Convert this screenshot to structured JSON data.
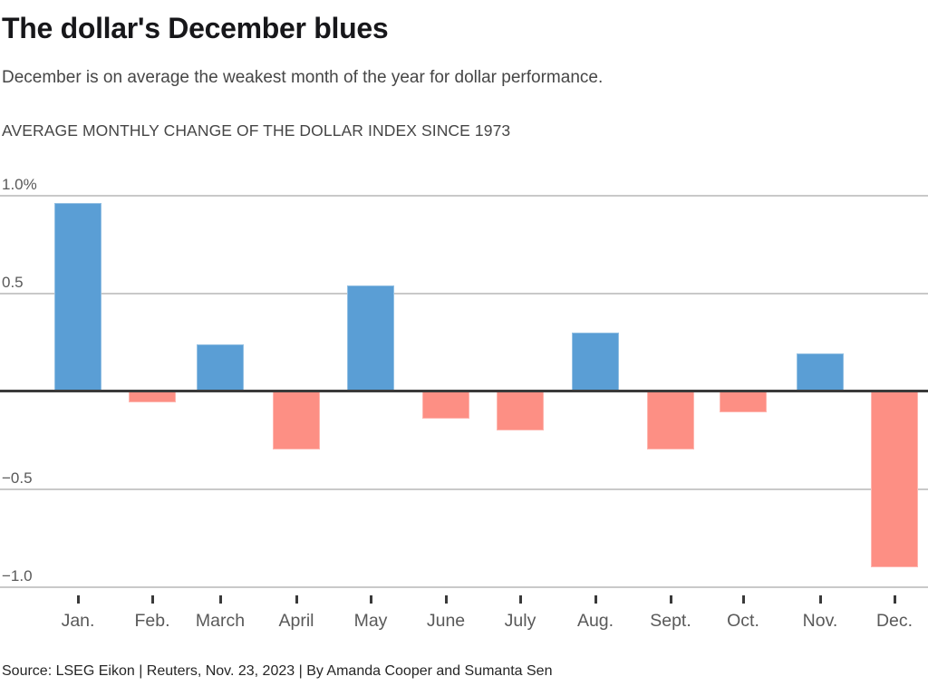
{
  "header": {
    "title": "The dollar's December blues",
    "subtitle": "December is on average the weakest month of the year for dollar performance.",
    "kicker": "AVERAGE MONTHLY CHANGE OF THE DOLLAR INDEX SINCE 1973"
  },
  "chart_data": {
    "type": "bar",
    "title": "AVERAGE MONTHLY CHANGE OF THE DOLLAR INDEX SINCE 1973",
    "categories": [
      "Jan.",
      "Feb.",
      "March",
      "April",
      "May",
      "June",
      "July",
      "Aug.",
      "Sept.",
      "Oct.",
      "Nov.",
      "Dec."
    ],
    "values": [
      0.96,
      -0.06,
      0.24,
      -0.3,
      0.54,
      -0.14,
      -0.2,
      0.3,
      -0.3,
      -0.11,
      0.19,
      -0.9
    ],
    "unit": "%",
    "xlabel": "",
    "ylabel": "",
    "ylim": [
      -1.15,
      1.1
    ],
    "y_ticks": [
      {
        "value": 1.0,
        "label": "1.0%"
      },
      {
        "value": 0.5,
        "label": "0.5"
      },
      {
        "value": 0,
        "label": ""
      },
      {
        "value": -0.5,
        "label": "−0.5"
      },
      {
        "value": -1.0,
        "label": "−1.0"
      }
    ],
    "grid": "horizontal",
    "legend": "none",
    "colors": {
      "positive": "#5A9ED5",
      "negative": "#FD8F84",
      "gridline": "#C9C9C9",
      "zero_line": "#3A3A3A",
      "tick": "#3A3A3A"
    }
  },
  "footer": {
    "source": "Source: LSEG Eikon | Reuters, Nov. 23, 2023 | By Amanda Cooper and Sumanta Sen"
  }
}
